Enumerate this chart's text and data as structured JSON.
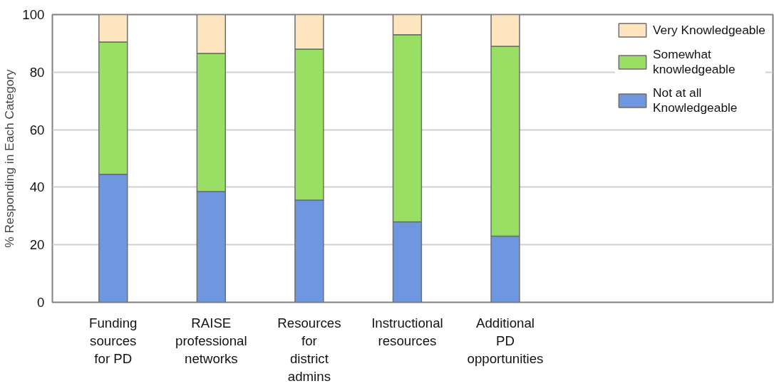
{
  "chart_data": {
    "type": "bar",
    "stacked": true,
    "ylabel": "% Responding in Each Category",
    "categories": [
      "Funding\nsources\nfor PD",
      "RAISE\nprofessional\nnetworks",
      "Resources\nfor\ndistrict\nadmins",
      "Instructional\nresources",
      "Additional\nPD\nopportunities"
    ],
    "series": [
      {
        "name": "Not at all\nKnowledgeable",
        "color": "#6f97df",
        "values": [
          44.5,
          38.5,
          35.5,
          28,
          23
        ]
      },
      {
        "name": "Somewhat\nknowledgeable",
        "color": "#98df63",
        "values": [
          46,
          48,
          52.5,
          65,
          66
        ]
      },
      {
        "name": "Very Knowledgeable",
        "color": "#fde6bf",
        "values": [
          9.5,
          13.5,
          12,
          7,
          11
        ]
      }
    ],
    "ylim": [
      0,
      100
    ],
    "yticks": [
      0,
      20,
      40,
      60,
      80,
      100
    ],
    "grid": "y",
    "legend": "top right"
  }
}
